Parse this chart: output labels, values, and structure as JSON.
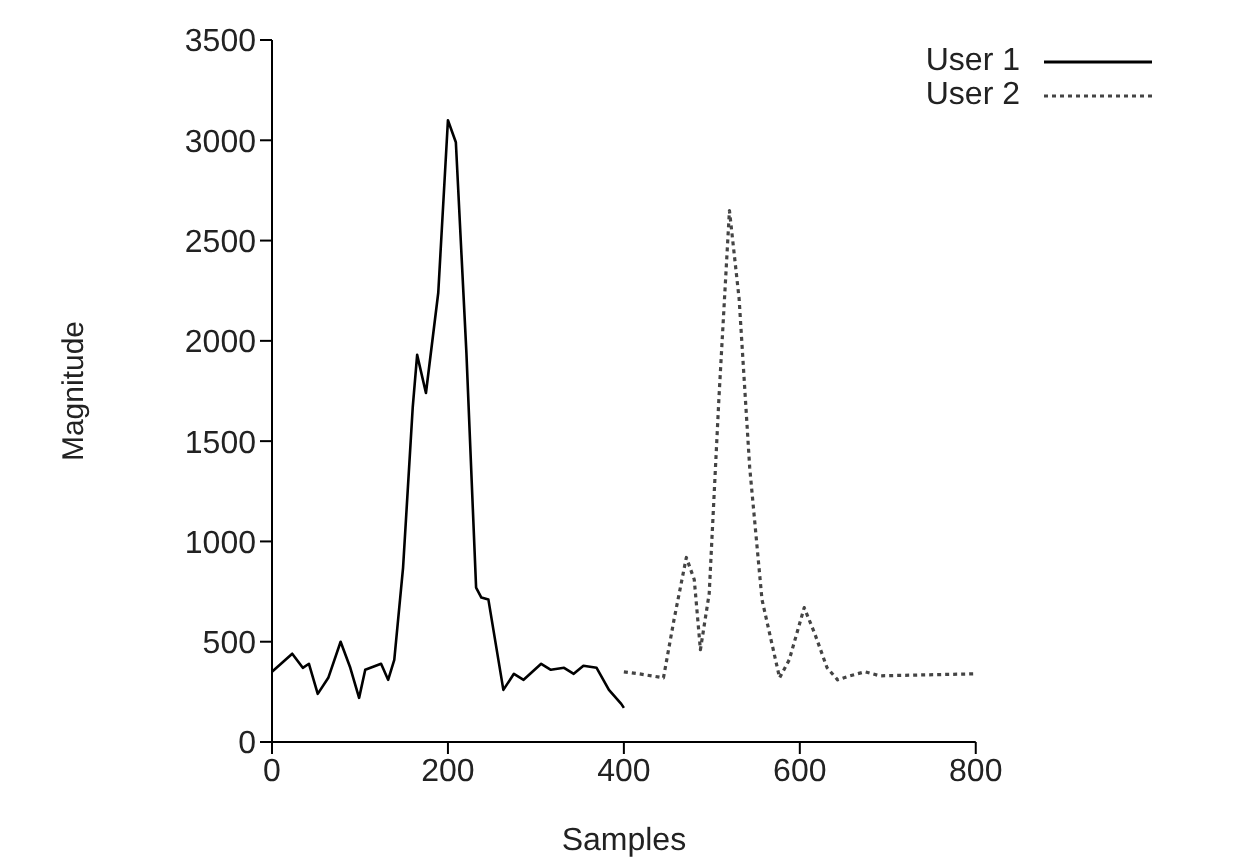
{
  "chart_data": {
    "type": "line",
    "xlabel": "Samples",
    "ylabel": "Magnitude",
    "xlim": [
      0,
      800
    ],
    "xticks": [
      0,
      200,
      400,
      600,
      800
    ],
    "ylim": [
      0,
      3500
    ],
    "yticks": [
      0,
      500,
      1000,
      1500,
      2000,
      2500,
      3000,
      3500
    ],
    "legend": "top right",
    "marker": "none",
    "series": [
      {
        "name": "User 1",
        "color": "#000000",
        "line_style": "solid",
        "x": [
          0,
          23,
          35,
          42,
          52,
          64,
          78,
          89,
          99,
          106,
          124,
          132,
          139,
          149,
          160,
          165,
          175,
          189,
          200,
          209,
          221,
          232,
          238,
          246,
          263,
          275,
          286,
          306,
          317,
          332,
          343,
          354,
          369,
          383,
          397,
          400
        ],
        "values": [
          350,
          440,
          370,
          390,
          240,
          320,
          500,
          370,
          220,
          360,
          390,
          310,
          410,
          870,
          1670,
          1930,
          1740,
          2240,
          3100,
          2990,
          1940,
          770,
          720,
          710,
          260,
          340,
          310,
          390,
          360,
          370,
          340,
          380,
          370,
          260,
          190,
          170
        ]
      },
      {
        "name": "User 2",
        "color": "#444444",
        "line_style": "dotted",
        "x": [
          400,
          417,
          445,
          457,
          471,
          480,
          487,
          497,
          508,
          520,
          531,
          543,
          557,
          577,
          588,
          605,
          617,
          631,
          643,
          657,
          674,
          691,
          800
        ],
        "values": [
          350,
          340,
          320,
          610,
          920,
          810,
          460,
          740,
          1710,
          2650,
          2210,
          1370,
          710,
          320,
          410,
          670,
          540,
          370,
          310,
          330,
          350,
          330,
          340
        ]
      }
    ]
  }
}
